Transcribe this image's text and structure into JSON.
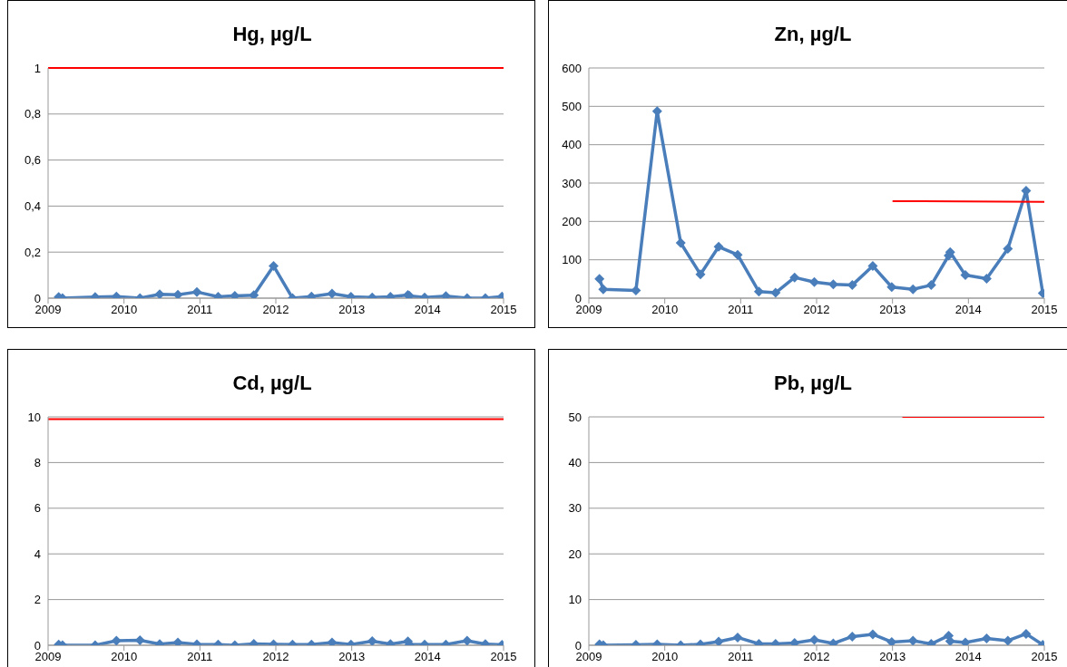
{
  "chart_data": [
    {
      "type": "line",
      "title": "Hg, µg/L",
      "x": [
        2009.14,
        2009.19,
        2009.62,
        2009.9,
        2010.21,
        2010.47,
        2010.71,
        2010.96,
        2011.24,
        2011.46,
        2011.71,
        2011.97,
        2012.22,
        2012.47,
        2012.74,
        2012.99,
        2013.27,
        2013.51,
        2013.74,
        2013.76,
        2013.96,
        2014.24,
        2014.52,
        2014.76,
        2014.98
      ],
      "xlim": [
        2009,
        2015
      ],
      "xticks": [
        2009,
        2010,
        2011,
        2012,
        2013,
        2014,
        2015
      ],
      "ylim": [
        0,
        1
      ],
      "yticks": [
        0,
        {
          "value": 0.2,
          "label": "0,2"
        },
        {
          "value": 0.4,
          "label": "0,4"
        },
        {
          "value": 0.6,
          "label": "0,6"
        },
        {
          "value": 0.8,
          "label": "0,8"
        },
        1
      ],
      "grid": "y",
      "marker": "diamond",
      "series": [
        {
          "color": "#4a7ebb",
          "values": [
            0.005,
            0,
            0.005,
            0.007,
            0,
            0.017,
            0.015,
            0.027,
            0.006,
            0.01,
            0.013,
            0.14,
            0,
            0.007,
            0.02,
            0.006,
            0.003,
            0.006,
            0.014,
            0.01,
            0.003,
            0.009,
            0,
            0,
            0.007
          ]
        }
      ],
      "ref_lines": [
        {
          "axis": "y",
          "value": 1,
          "color": "#ff0000"
        }
      ]
    },
    {
      "type": "line",
      "title": "Zn, µg/L",
      "x": [
        2009.14,
        2009.19,
        2009.62,
        2009.9,
        2010.21,
        2010.47,
        2010.71,
        2010.96,
        2011.24,
        2011.46,
        2011.71,
        2011.97,
        2012.22,
        2012.47,
        2012.74,
        2012.99,
        2013.27,
        2013.51,
        2013.74,
        2013.76,
        2013.96,
        2014.24,
        2014.52,
        2014.76,
        2014.98
      ],
      "xlim": [
        2009,
        2015
      ],
      "xticks": [
        2009,
        2010,
        2011,
        2012,
        2013,
        2014,
        2015
      ],
      "ylim": [
        0,
        600
      ],
      "yticks": [
        0,
        100,
        200,
        300,
        400,
        500,
        600
      ],
      "grid": "y",
      "marker": "diamond",
      "series": [
        {
          "color": "#4a7ebb",
          "values": [
            50,
            23,
            20,
            487,
            144,
            62,
            134,
            113,
            17,
            14,
            54,
            42,
            36,
            34,
            84,
            29,
            23,
            34,
            111,
            120,
            60,
            51,
            129,
            280,
            13
          ]
        },
        {
          "type": "line",
          "color": "#ff0000",
          "marker": "none",
          "x": [
            2013,
            2015
          ],
          "values": [
            253,
            251
          ]
        }
      ]
    },
    {
      "type": "line",
      "title": "Cd, µg/L",
      "x": [
        2009.14,
        2009.19,
        2009.62,
        2009.9,
        2010.21,
        2010.47,
        2010.71,
        2010.96,
        2011.24,
        2011.46,
        2011.71,
        2011.97,
        2012.22,
        2012.47,
        2012.74,
        2012.99,
        2013.27,
        2013.51,
        2013.74,
        2013.76,
        2013.96,
        2014.24,
        2014.52,
        2014.76,
        2014.98
      ],
      "xlim": [
        2009,
        2015
      ],
      "xticks": [
        2009,
        2010,
        2011,
        2012,
        2013,
        2014,
        2015
      ],
      "ylim": [
        0,
        10
      ],
      "yticks": [
        0,
        2,
        4,
        6,
        8,
        10
      ],
      "grid": "y",
      "marker": "diamond",
      "series": [
        {
          "color": "#4a7ebb",
          "values": [
            0.03,
            0,
            0,
            0.2,
            0.22,
            0.05,
            0.12,
            0.04,
            0.03,
            0,
            0.06,
            0.04,
            0.03,
            0.03,
            0.12,
            0.03,
            0.18,
            0.05,
            0.17,
            0.03,
            0.03,
            0.03,
            0.2,
            0.05,
            0.02
          ]
        }
      ],
      "ref_lines": [
        {
          "axis": "y",
          "value": 9.9,
          "color": "#ff0000"
        }
      ]
    },
    {
      "type": "line",
      "title": "Pb, µg/L",
      "x": [
        2009.14,
        2009.19,
        2009.62,
        2009.9,
        2010.21,
        2010.47,
        2010.71,
        2010.96,
        2011.24,
        2011.46,
        2011.71,
        2011.97,
        2012.22,
        2012.47,
        2012.74,
        2012.99,
        2013.27,
        2013.51,
        2013.74,
        2013.76,
        2013.96,
        2014.24,
        2014.52,
        2014.76,
        2014.98
      ],
      "xlim": [
        2009,
        2015
      ],
      "xticks": [
        2009,
        2010,
        2011,
        2012,
        2013,
        2014,
        2015
      ],
      "ylim": [
        0,
        50
      ],
      "yticks": [
        0,
        10,
        20,
        30,
        40,
        50
      ],
      "grid": "y",
      "marker": "diamond",
      "series": [
        {
          "color": "#4a7ebb",
          "values": [
            0.2,
            0,
            0.1,
            0.2,
            0,
            0.2,
            0.8,
            1.7,
            0.3,
            0.3,
            0.5,
            1.2,
            0.4,
            1.9,
            2.4,
            0.7,
            1.0,
            0.3,
            2.1,
            0.9,
            0.6,
            1.5,
            1.0,
            2.5,
            0.1
          ]
        },
        {
          "type": "line",
          "color": "#ff0000",
          "marker": "none",
          "x": [
            2013.13,
            2015
          ],
          "values": [
            50,
            50
          ]
        }
      ]
    }
  ]
}
